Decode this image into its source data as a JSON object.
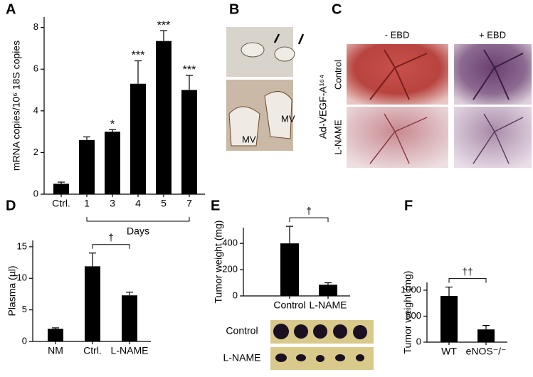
{
  "chart_data": [
    {
      "type": "bar",
      "panel": "A",
      "ylabel": "mRNA copies/10⁶ 18S copies",
      "categories": [
        "Ctrl.",
        "1",
        "3",
        "4",
        "5",
        "7"
      ],
      "values": [
        0.5,
        2.6,
        3.0,
        5.3,
        7.35,
        5.0
      ],
      "errors": [
        0.08,
        0.15,
        0.1,
        1.1,
        0.5,
        0.7
      ],
      "annotations": [
        null,
        null,
        "*",
        "***",
        "***",
        "***"
      ],
      "xgroup_label": "Days",
      "color": "#000000",
      "ylim": [
        0,
        8.5
      ],
      "yticks": [
        0,
        2,
        4,
        6,
        8
      ]
    },
    {
      "type": "bar",
      "panel": "D",
      "ylabel": "Plasma (µl)",
      "categories": [
        "NM",
        "Ctrl.",
        "L-NAME"
      ],
      "values": [
        2.0,
        11.9,
        7.3
      ],
      "errors": [
        0.15,
        2.1,
        0.5
      ],
      "significance": "†",
      "color": "#000000",
      "ylim": [
        0,
        16
      ],
      "yticks": [
        0,
        5,
        10,
        15
      ]
    },
    {
      "type": "bar",
      "panel": "E",
      "ylabel": "Tumor weight (mg)",
      "categories": [
        "Control",
        "L-NAME"
      ],
      "values": [
        400,
        85
      ],
      "errors": [
        130,
        15
      ],
      "significance": "†",
      "photo_rows": [
        "Control",
        "L-NAME"
      ],
      "color": "#000000",
      "ylim": [
        0,
        520
      ],
      "yticks": [
        0,
        200,
        400
      ]
    },
    {
      "type": "bar",
      "panel": "F",
      "ylabel": "Tumor weight (mg)",
      "categories": [
        "WT",
        "eNOS⁻/⁻"
      ],
      "values": [
        890,
        245
      ],
      "errors": [
        170,
        75
      ],
      "significance": "††",
      "color": "#000000",
      "ylim": [
        0,
        1150
      ],
      "yticks": [
        0,
        500,
        1000
      ]
    }
  ],
  "images": [
    {
      "panel": "B",
      "labels": [
        "MV",
        "MV"
      ]
    },
    {
      "panel": "C",
      "columns": [
        "- EBD",
        "+ EBD"
      ],
      "rows": [
        "Control",
        "L-NAME"
      ],
      "ylabel": "Ad-VEGF-A¹⁶⁴"
    }
  ]
}
